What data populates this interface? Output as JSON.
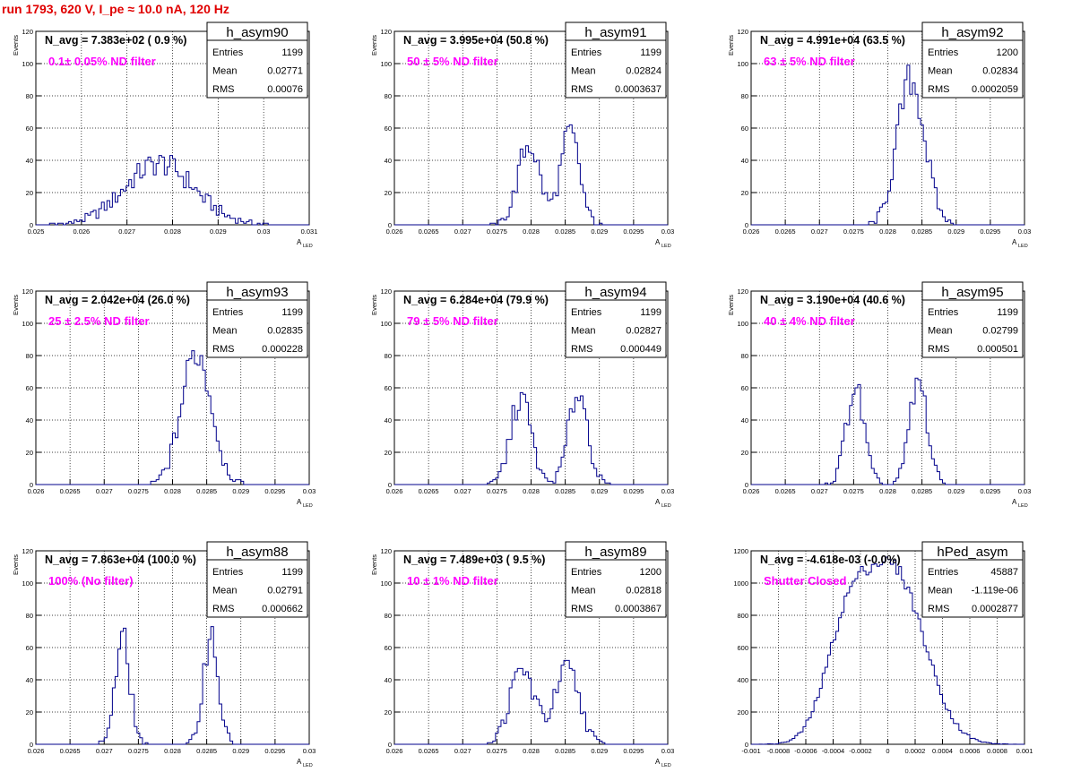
{
  "run_title": "run 1793,   620 V, I_pe ≈ 10.0 nA, 120 Hz",
  "colors": {
    "hist_line": "#00008b",
    "title": "#e00000",
    "annotation": "#ff00ff",
    "grid": "#000000"
  },
  "chart_data": [
    {
      "type": "histogram",
      "name": "h_asym90",
      "navg": "N_avg = 7.383e+02 ( 0.9 %)",
      "note": "0.1± 0.05% ND filter",
      "stats": {
        "entries": "1199",
        "mean": "0.02771",
        "rms": "0.00076"
      },
      "xlabel": "A",
      "xlabel_sub": "LED",
      "ylabel": "Events",
      "xlim": [
        0.025,
        0.031
      ],
      "ylim": [
        0,
        120
      ],
      "xticks": [
        0.025,
        0.026,
        0.027,
        0.028,
        0.029,
        0.03,
        0.031
      ],
      "xtick_labels": [
        "0.025",
        "0.026",
        "0.027",
        "0.028",
        "0.029",
        "0.03",
        "0.031"
      ],
      "yticks": [
        0,
        20,
        40,
        60,
        80,
        100,
        120
      ],
      "ytick_labels": [
        "0",
        "20",
        "40",
        "60",
        "80",
        "100",
        "120"
      ],
      "peaks": [
        [
          0.02771,
          0.00076,
          38
        ]
      ]
    },
    {
      "type": "histogram",
      "name": "h_asym91",
      "navg": "N_avg = 3.995e+04 (50.8 %)",
      "note": "50 ± 5% ND filter",
      "stats": {
        "entries": "1199",
        "mean": "0.02824",
        "rms": "0.0003637"
      },
      "xlabel": "A",
      "xlabel_sub": "LED",
      "ylabel": "Events",
      "xlim": [
        0.026,
        0.03
      ],
      "ylim": [
        0,
        120
      ],
      "xticks": [
        0.026,
        0.0265,
        0.027,
        0.0275,
        0.028,
        0.0285,
        0.029,
        0.0295,
        0.03
      ],
      "xtick_labels": [
        "0.026",
        "0.0265",
        "0.027",
        "0.0275",
        "0.028",
        "0.0285",
        "0.029",
        "0.0295",
        "0.03"
      ],
      "yticks": [
        0,
        20,
        40,
        60,
        80,
        100,
        120
      ],
      "ytick_labels": [
        "0",
        "20",
        "40",
        "60",
        "80",
        "100",
        "120"
      ],
      "peaks": [
        [
          0.02797,
          0.00016,
          50
        ],
        [
          0.02857,
          0.00014,
          56
        ]
      ]
    },
    {
      "type": "histogram",
      "name": "h_asym92",
      "navg": "N_avg = 4.991e+04 (63.5 %)",
      "note": "63 ± 5% ND filter",
      "stats": {
        "entries": "1200",
        "mean": "0.02834",
        "rms": "0.0002059"
      },
      "xlabel": "A",
      "xlabel_sub": "LED",
      "ylabel": "Events",
      "xlim": [
        0.026,
        0.03
      ],
      "ylim": [
        0,
        120
      ],
      "xticks": [
        0.026,
        0.0265,
        0.027,
        0.0275,
        0.028,
        0.0285,
        0.029,
        0.0295,
        0.03
      ],
      "xtick_labels": [
        "0.026",
        "0.0265",
        "0.027",
        "0.0275",
        "0.028",
        "0.0285",
        "0.029",
        "0.0295",
        "0.03"
      ],
      "yticks": [
        0,
        20,
        40,
        60,
        80,
        100,
        120
      ],
      "ytick_labels": [
        "0",
        "20",
        "40",
        "60",
        "80",
        "100",
        "120"
      ],
      "peaks": [
        [
          0.02834,
          0.0002,
          90
        ]
      ]
    },
    {
      "type": "histogram",
      "name": "h_asym93",
      "navg": "N_avg = 2.042e+04 (26.0 %)",
      "note": "25 ± 2.5% ND filter",
      "stats": {
        "entries": "1199",
        "mean": "0.02835",
        "rms": "0.000228"
      },
      "xlabel": "A",
      "xlabel_sub": "LED",
      "ylabel": "Events",
      "xlim": [
        0.026,
        0.03
      ],
      "ylim": [
        0,
        120
      ],
      "xticks": [
        0.026,
        0.0265,
        0.027,
        0.0275,
        0.028,
        0.0285,
        0.029,
        0.0295,
        0.03
      ],
      "xtick_labels": [
        "0.026",
        "0.0265",
        "0.027",
        "0.0275",
        "0.028",
        "0.0285",
        "0.029",
        "0.0295",
        "0.03"
      ],
      "yticks": [
        0,
        20,
        40,
        60,
        80,
        100,
        120
      ],
      "ytick_labels": [
        "0",
        "20",
        "40",
        "60",
        "80",
        "100",
        "120"
      ],
      "peaks": [
        [
          0.02835,
          0.00022,
          82
        ]
      ]
    },
    {
      "type": "histogram",
      "name": "h_asym94",
      "navg": "N_avg = 6.284e+04 (79.9 %)",
      "note": "79 ± 5% ND filter",
      "stats": {
        "entries": "1199",
        "mean": "0.02827",
        "rms": "0.000449"
      },
      "xlabel": "A",
      "xlabel_sub": "LED",
      "ylabel": "Events",
      "xlim": [
        0.026,
        0.03
      ],
      "ylim": [
        0,
        120
      ],
      "xticks": [
        0.026,
        0.0265,
        0.027,
        0.0275,
        0.028,
        0.0285,
        0.029,
        0.0295,
        0.03
      ],
      "xtick_labels": [
        "0.026",
        "0.0265",
        "0.027",
        "0.0275",
        "0.028",
        "0.0285",
        "0.029",
        "0.0295",
        "0.03"
      ],
      "yticks": [
        0,
        20,
        40,
        60,
        80,
        100,
        120
      ],
      "ytick_labels": [
        "0",
        "20",
        "40",
        "60",
        "80",
        "100",
        "120"
      ],
      "peaks": [
        [
          0.02785,
          0.00015,
          54
        ],
        [
          0.02869,
          0.00014,
          58
        ]
      ]
    },
    {
      "type": "histogram",
      "name": "h_asym95",
      "navg": "N_avg = 3.190e+04 (40.6 %)",
      "note": "40 ± 4% ND filter",
      "stats": {
        "entries": "1199",
        "mean": "0.02799",
        "rms": "0.000501"
      },
      "xlabel": "A",
      "xlabel_sub": "LED",
      "ylabel": "Events",
      "xlim": [
        0.026,
        0.03
      ],
      "ylim": [
        0,
        120
      ],
      "xticks": [
        0.026,
        0.0265,
        0.027,
        0.0275,
        0.028,
        0.0285,
        0.029,
        0.0295,
        0.03
      ],
      "xtick_labels": [
        "0.026",
        "0.0265",
        "0.027",
        "0.0275",
        "0.028",
        "0.0285",
        "0.029",
        "0.0295",
        "0.03"
      ],
      "yticks": [
        0,
        20,
        40,
        60,
        80,
        100,
        120
      ],
      "ytick_labels": [
        "0",
        "20",
        "40",
        "60",
        "80",
        "100",
        "120"
      ],
      "peaks": [
        [
          0.02752,
          0.00013,
          60
        ],
        [
          0.02845,
          0.00013,
          63
        ]
      ]
    },
    {
      "type": "histogram",
      "name": "h_asym88",
      "navg": "N_avg = 7.863e+04 (100.0 %)",
      "note": "100% (No filter)",
      "stats": {
        "entries": "1199",
        "mean": "0.02791",
        "rms": "0.000662"
      },
      "xlabel": "A",
      "xlabel_sub": "LED",
      "ylabel": "Events",
      "xlim": [
        0.026,
        0.03
      ],
      "ylim": [
        0,
        120
      ],
      "xticks": [
        0.026,
        0.0265,
        0.027,
        0.0275,
        0.028,
        0.0285,
        0.029,
        0.0295,
        0.03
      ],
      "xtick_labels": [
        "0.026",
        "0.0265",
        "0.027",
        "0.0275",
        "0.028",
        "0.0285",
        "0.029",
        "0.0295",
        "0.03"
      ],
      "yticks": [
        0,
        20,
        40,
        60,
        80,
        100,
        120
      ],
      "ytick_labels": [
        "0",
        "20",
        "40",
        "60",
        "80",
        "100",
        "120"
      ],
      "peaks": [
        [
          0.02727,
          0.00011,
          64
        ],
        [
          0.02856,
          0.00011,
          68
        ]
      ]
    },
    {
      "type": "histogram",
      "name": "h_asym89",
      "navg": "N_avg = 7.489e+03 ( 9.5 %)",
      "note": "10 ± 1% ND filter",
      "stats": {
        "entries": "1200",
        "mean": "0.02818",
        "rms": "0.0003867"
      },
      "xlabel": "A",
      "xlabel_sub": "LED",
      "ylabel": "Events",
      "xlim": [
        0.026,
        0.03
      ],
      "ylim": [
        0,
        120
      ],
      "xticks": [
        0.026,
        0.0265,
        0.027,
        0.0275,
        0.028,
        0.0285,
        0.029,
        0.0295,
        0.03
      ],
      "xtick_labels": [
        "0.026",
        "0.0265",
        "0.027",
        "0.0275",
        "0.028",
        "0.0285",
        "0.029",
        "0.0295",
        "0.03"
      ],
      "yticks": [
        0,
        20,
        40,
        60,
        80,
        100,
        120
      ],
      "ytick_labels": [
        "0",
        "20",
        "40",
        "60",
        "80",
        "100",
        "120"
      ],
      "peaks": [
        [
          0.02787,
          0.00018,
          46
        ],
        [
          0.02853,
          0.00018,
          46
        ]
      ]
    },
    {
      "type": "histogram",
      "name": "hPed_asym",
      "navg": "N_avg = -4.618e-03 (-0.0%)",
      "note": "Shutter Closed",
      "stats": {
        "entries": "45887",
        "mean": "-1.119e-06",
        "rms": "0.0002877"
      },
      "xlabel": "",
      "xlabel_sub": "",
      "ylabel": "",
      "xlim": [
        -0.001,
        0.001
      ],
      "ylim": [
        0,
        1200
      ],
      "xticks": [
        -0.001,
        -0.0008,
        -0.0006,
        -0.0004,
        -0.0002,
        0,
        0.0002,
        0.0004,
        0.0006,
        0.0008,
        0.001
      ],
      "xtick_labels": [
        "-0.001",
        "-0.0008",
        "-0.0006",
        "-0.0004",
        "-0.0002",
        "0",
        "0.0002",
        "0.0004",
        "0.0006",
        "0.0008",
        "0.001"
      ],
      "yticks": [
        0,
        200,
        400,
        600,
        800,
        1000,
        1200
      ],
      "ytick_labels": [
        "0",
        "200",
        "400",
        "600",
        "800",
        "1000",
        "1200"
      ],
      "peaks": [
        [
          -0.0003,
          0.00016,
          620
        ],
        [
          5e-05,
          0.00022,
          1050
        ]
      ]
    }
  ]
}
